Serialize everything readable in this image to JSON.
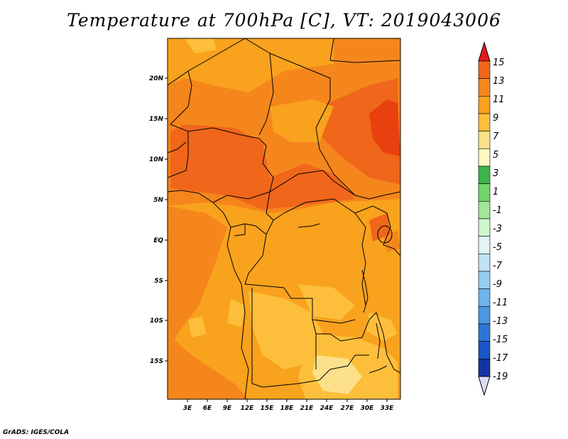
{
  "title": "Temperature at 700hPa [C], VT: 2019043006",
  "credit": "GrADS: IGES/COLA",
  "map": {
    "lat_labels": [
      "20N",
      "15N",
      "10N",
      "5N",
      "EQ",
      "5S",
      "10S",
      "15S"
    ],
    "lon_labels": [
      "3E",
      "6E",
      "9E",
      "12E",
      "15E",
      "18E",
      "21E",
      "24E",
      "27E",
      "30E",
      "33E"
    ]
  },
  "colorbar": {
    "labels": [
      "15",
      "13",
      "11",
      "9",
      "7",
      "5",
      "3",
      "1",
      "-1",
      "-3",
      "-5",
      "-7",
      "-9",
      "-11",
      "-13",
      "-15",
      "-17",
      "-19"
    ],
    "colors": [
      "#e8400f",
      "#f0661a",
      "#f5861c",
      "#f9a21d",
      "#fdbf3b",
      "#fde08a",
      "#fff9c2",
      "#3cb54a",
      "#71d56a",
      "#a2e69a",
      "#cff5cc",
      "#e3f4f4",
      "#c0e2f4",
      "#97cdf0",
      "#70b4eb",
      "#4b97e1",
      "#2e76d6",
      "#1c55c5",
      "#1234a2",
      "#0b0f6b"
    ],
    "top_arrow_color": "#e31a1c",
    "bottom_arrow_color": "#dcdcf5"
  }
}
